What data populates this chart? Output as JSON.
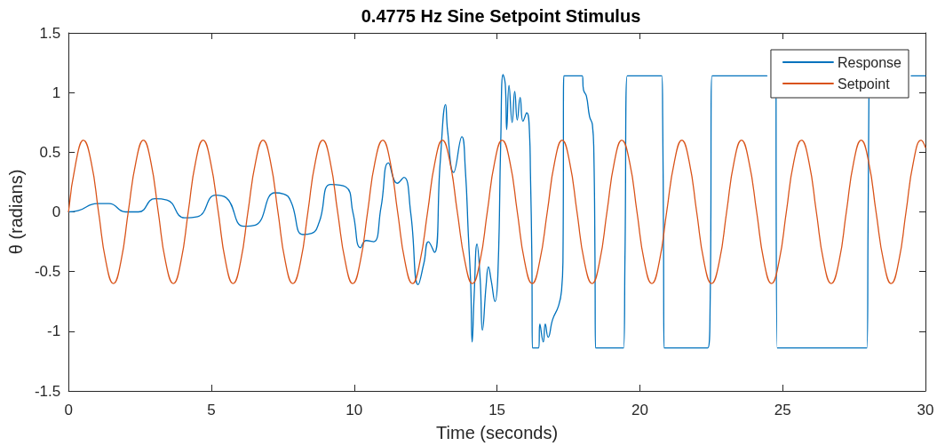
{
  "chart_data": {
    "type": "line",
    "title": "0.4775 Hz Sine Setpoint Stimulus",
    "xlabel": "Time (seconds)",
    "ylabel": "θ (radians)",
    "xlim": [
      0,
      30
    ],
    "xticks": [
      0,
      5,
      10,
      15,
      20,
      25,
      30
    ],
    "ylim": [
      -1.5,
      1.5
    ],
    "yticks": [
      -1.5,
      -1,
      -0.5,
      0,
      0.5,
      1,
      1.5
    ],
    "legend": "top right",
    "marker": "none",
    "line_style": "solid",
    "series": [
      {
        "name": "Response",
        "color": "#0072bd",
        "x": [
          0,
          0.33,
          1.0,
          1.42,
          1.99,
          2.45,
          3.02,
          3.44,
          4.06,
          4.52,
          5.15,
          5.51,
          6.13,
          6.54,
          7.22,
          7.53,
          7.78,
          8.2,
          8.51,
          8.77,
          9.18,
          9.7,
          9.96,
          10.22,
          10.42,
          10.68,
          10.94,
          11.2,
          11.51,
          11.74,
          11.98,
          12.24,
          12.44,
          12.6,
          12.81,
          13.01,
          13.2,
          13.27,
          13.48,
          13.77,
          13.89,
          14.0,
          14.08,
          14.13,
          14.2,
          14.3,
          14.41,
          14.49,
          14.62,
          14.7,
          14.8,
          14.93,
          15.03,
          15.13,
          15.21,
          15.29,
          15.34,
          15.42,
          15.53,
          15.62,
          15.71,
          15.81,
          15.91,
          16.04,
          16.14,
          16.17,
          16.22,
          16.24,
          16.46,
          16.5,
          16.62,
          16.69,
          16.79,
          16.95,
          17.15,
          17.26,
          17.31,
          17.34,
          17.98,
          18.03,
          18.13,
          18.24,
          18.34,
          18.39,
          18.43,
          18.45,
          19.43,
          19.48,
          19.56,
          20.77,
          20.8,
          20.83,
          20.85,
          22.38,
          22.46,
          22.53,
          24.45,
          24.6,
          24.77,
          24.81,
          27.95,
          27.99,
          28.02,
          28.5,
          29.5,
          30
        ],
        "values": [
          0,
          0.01,
          0.07,
          0.07,
          0,
          0,
          0.11,
          0.1,
          -0.05,
          -0.04,
          0.14,
          0.12,
          -0.12,
          -0.11,
          0.16,
          0.15,
          0.09,
          -0.19,
          -0.18,
          -0.09,
          0.23,
          0.21,
          -0.01,
          -0.3,
          -0.24,
          -0.25,
          0.04,
          0.41,
          0.24,
          0.29,
          -0.01,
          -0.61,
          -0.43,
          -0.25,
          -0.34,
          0.41,
          0.9,
          0.68,
          0.33,
          0.63,
          0.36,
          -0.21,
          -0.61,
          -1.09,
          -0.7,
          -0.27,
          -0.56,
          -0.99,
          -0.61,
          -0.46,
          -0.58,
          -0.75,
          -0.53,
          0.58,
          1.15,
          1.07,
          0.69,
          1.06,
          0.75,
          1.01,
          0.77,
          0.96,
          0.76,
          0.83,
          0.65,
          0.33,
          -0.38,
          -1.14,
          -1.14,
          -0.94,
          -1.09,
          -0.94,
          -1.05,
          -0.9,
          -0.79,
          -0.66,
          -0.38,
          1.14,
          1.14,
          1.02,
          0.97,
          0.8,
          0.73,
          0.5,
          -0.38,
          -1.14,
          -1.14,
          -0.38,
          1.14,
          1.14,
          0.79,
          -0.26,
          -1.14,
          -1.14,
          -0.8,
          1.14,
          1.14,
          null,
          0.95,
          -1.14,
          -1.14,
          -0.14,
          0.95,
          null,
          1.14,
          1.14
        ]
      },
      {
        "name": "Setpoint",
        "color": "#d95319",
        "x": [
          0,
          0.26,
          0.52,
          0.79,
          1.05,
          1.31,
          1.57,
          1.83,
          2.09,
          2.36,
          2.62,
          2.88,
          3.14,
          3.4,
          3.67,
          3.93,
          4.19,
          4.45,
          4.71,
          4.97,
          5.24,
          5.5,
          5.76,
          6.02,
          6.28,
          6.55,
          6.81,
          7.07,
          7.33,
          7.59,
          7.85,
          8.12,
          8.38,
          8.64,
          8.9,
          9.16,
          9.42,
          9.69,
          9.95,
          10.21,
          10.47,
          10.73,
          11.0,
          11.26,
          11.52,
          11.78,
          12.04,
          12.3,
          12.57,
          12.83,
          13.09,
          13.35,
          13.61,
          13.88,
          14.14,
          14.4,
          14.66,
          14.92,
          15.18,
          15.45,
          15.71,
          15.97,
          16.23,
          16.49,
          16.76,
          17.02,
          17.28,
          17.54,
          17.8,
          18.06,
          18.33,
          18.59,
          18.85,
          19.11,
          19.37,
          19.64,
          19.9,
          20.16,
          20.42,
          20.68,
          20.94,
          21.21,
          21.47,
          21.73,
          21.99,
          22.25,
          22.51,
          22.78,
          23.04,
          23.3,
          23.56,
          23.82,
          24.09,
          24.35,
          24.61,
          24.87,
          25.13,
          25.39,
          25.66,
          25.92,
          26.18,
          26.44,
          26.7,
          26.97,
          27.23,
          27.49,
          27.75,
          28.01,
          28.27,
          28.54,
          28.8,
          29.06,
          29.32,
          29.58,
          29.85,
          30
        ],
        "values": [
          0,
          0.42,
          0.6,
          0.42,
          0,
          -0.42,
          -0.6,
          -0.42,
          0,
          0.42,
          0.6,
          0.42,
          0,
          -0.42,
          -0.6,
          -0.42,
          0,
          0.42,
          0.6,
          0.42,
          0,
          -0.42,
          -0.6,
          -0.42,
          0,
          0.42,
          0.6,
          0.42,
          0,
          -0.42,
          -0.6,
          -0.42,
          0,
          0.42,
          0.6,
          0.42,
          0,
          -0.42,
          -0.6,
          -0.42,
          0,
          0.42,
          0.6,
          0.42,
          0,
          -0.42,
          -0.6,
          -0.42,
          0,
          0.42,
          0.6,
          0.42,
          0,
          -0.42,
          -0.6,
          -0.42,
          0,
          0.42,
          0.6,
          0.42,
          0,
          -0.42,
          -0.6,
          -0.42,
          0,
          0.42,
          0.6,
          0.42,
          0,
          -0.42,
          -0.6,
          -0.42,
          0,
          0.42,
          0.6,
          0.42,
          0,
          -0.42,
          -0.6,
          -0.42,
          0,
          0.42,
          0.6,
          0.42,
          0,
          -0.42,
          -0.6,
          -0.42,
          0,
          0.42,
          0.6,
          0.42,
          0,
          -0.42,
          -0.6,
          -0.42,
          0,
          0.42,
          0.6,
          0.42,
          0,
          -0.42,
          -0.6,
          -0.42,
          0,
          0.42,
          0.6,
          0.42,
          0,
          -0.42,
          -0.6,
          -0.42,
          0,
          0.42,
          0.6,
          0.54
        ]
      }
    ]
  }
}
